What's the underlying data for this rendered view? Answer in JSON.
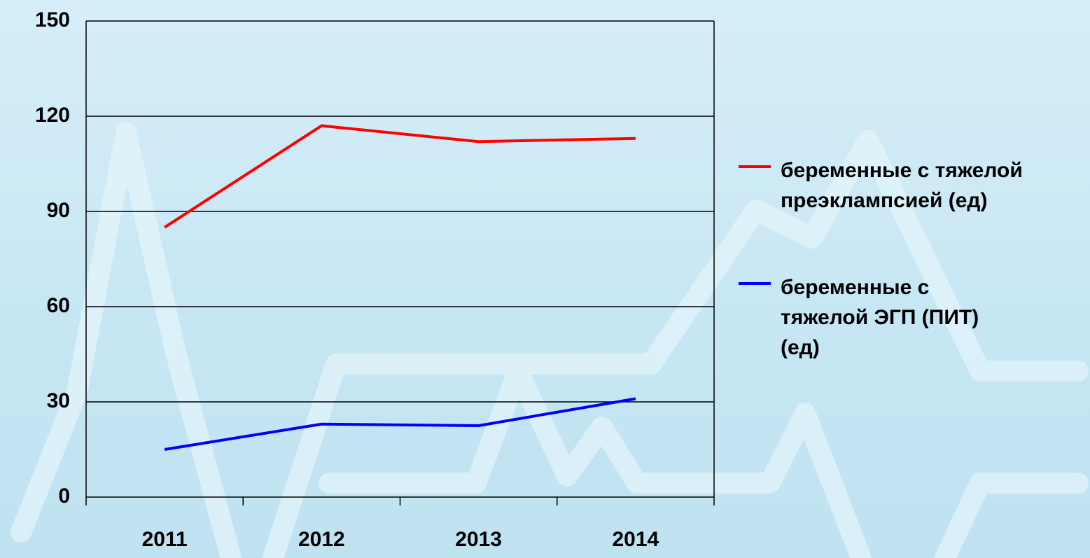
{
  "chart_data": {
    "type": "line",
    "categories": [
      "2011",
      "2012",
      "2013",
      "2014"
    ],
    "series": [
      {
        "name": "беременные с тяжелой преэклампсией (ед)",
        "color": "#ff0000",
        "values": [
          85,
          117,
          112,
          113
        ]
      },
      {
        "name": "беременные с тяжелой ЭГП (ПИТ) (ед)",
        "color": "#0000ff",
        "values": [
          15,
          23,
          22.5,
          31
        ]
      }
    ],
    "ylim": [
      0,
      150
    ],
    "yticks": [
      0,
      30,
      60,
      90,
      120,
      150
    ],
    "grid": true,
    "legend": "right"
  }
}
